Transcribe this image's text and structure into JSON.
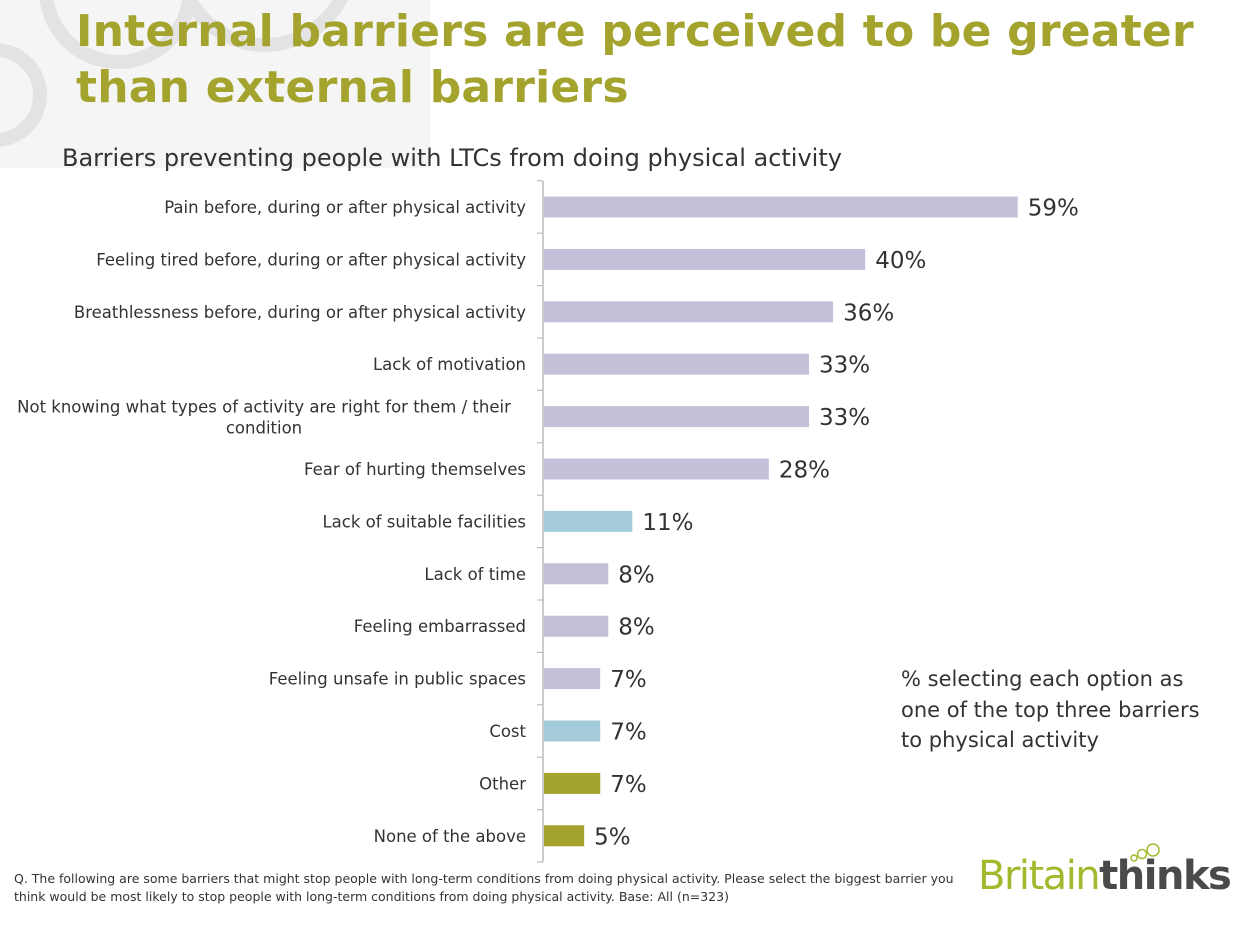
{
  "slide": {
    "title": "Internal barriers are perceived to be greater than external barriers",
    "subtitle": "Barriers preventing people with LTCs from doing physical activity",
    "note": "% selecting each option as one of the top three barriers to physical activity",
    "footnote": "Q. The following are some barriers that might stop people with long-term conditions from doing physical activity.  Please select the biggest barrier you think would be most likely to stop people with long-term conditions from doing physical activity.  Base: All (n=323)",
    "logo": {
      "part1": "Britain",
      "part2": "thinks"
    }
  },
  "colors": {
    "title": "#a3a32e",
    "internal": "#c6bfd9",
    "external": "#a3cbd9",
    "other": "#a3a32e",
    "text": "#333333"
  },
  "chart_data": {
    "type": "bar",
    "orientation": "horizontal",
    "title": "Barriers preventing people with LTCs from doing physical activity",
    "xlabel": "",
    "ylabel": "",
    "unit": "%",
    "xlim": [
      0,
      100
    ],
    "grid": false,
    "categories": [
      [
        "Pain before, during or after physical activity"
      ],
      [
        "Feeling tired before, during or after physical activity"
      ],
      [
        "Breathlessness before, during or after physical activity"
      ],
      [
        "Lack of motivation"
      ],
      [
        "Not knowing what types of activity are right for them / their",
        "condition"
      ],
      [
        "Fear of hurting themselves"
      ],
      [
        "Lack of suitable facilities"
      ],
      [
        "Lack of time"
      ],
      [
        "Feeling embarrassed"
      ],
      [
        "Feeling unsafe in public spaces"
      ],
      [
        "Cost"
      ],
      [
        "Other"
      ],
      [
        "None of the above"
      ]
    ],
    "values": [
      59,
      40,
      36,
      33,
      33,
      28,
      11,
      8,
      8,
      7,
      7,
      7,
      5
    ],
    "value_labels": [
      "59%",
      "40%",
      "36%",
      "33%",
      "33%",
      "28%",
      "11%",
      "8%",
      "8%",
      "7%",
      "7%",
      "7%",
      "5%"
    ],
    "groups": [
      "internal",
      "internal",
      "internal",
      "internal",
      "internal",
      "internal",
      "external",
      "internal",
      "internal",
      "internal",
      "external",
      "other",
      "other"
    ],
    "annotation": "% selecting each option as one of the top three barriers to physical activity"
  }
}
